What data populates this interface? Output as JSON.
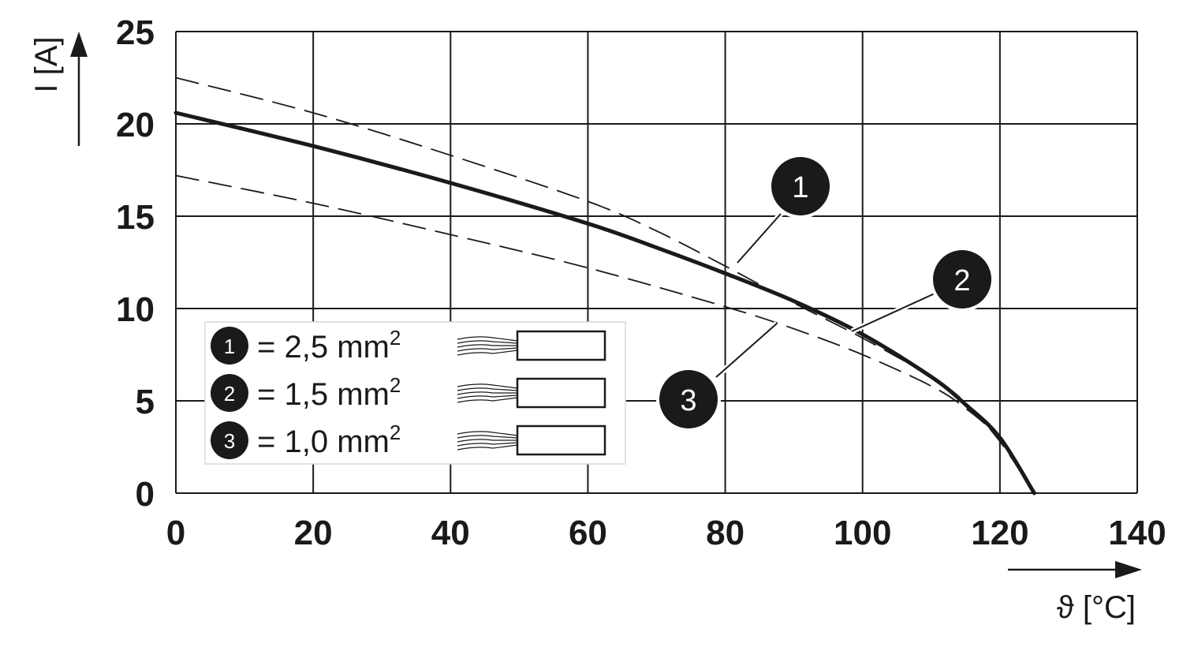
{
  "chart_data": {
    "type": "line",
    "xlabel": "ϑ [°C]",
    "ylabel": "I [A]",
    "xlim": [
      0,
      140
    ],
    "ylim": [
      0,
      25
    ],
    "xticks": [
      "0",
      "20",
      "40",
      "60",
      "80",
      "100",
      "120",
      "140"
    ],
    "yticks": [
      "0",
      "5",
      "10",
      "15",
      "20",
      "25"
    ],
    "grid": true,
    "legend_position": "bottom-left",
    "series": [
      {
        "name": "1",
        "style": "dashed",
        "x": [
          0,
          20,
          40,
          60,
          70,
          80,
          90,
          100,
          110,
          115,
          120,
          125
        ],
        "y": [
          22.5,
          20.6,
          18.3,
          15.8,
          14.2,
          12.3,
          10.3,
          8.4,
          6.3,
          4.9,
          2.8,
          0
        ]
      },
      {
        "name": "2",
        "style": "solid",
        "x": [
          0,
          20,
          40,
          60,
          70,
          80,
          90,
          100,
          110,
          115,
          120,
          125
        ],
        "y": [
          20.6,
          18.8,
          16.8,
          14.6,
          13.3,
          11.9,
          10.4,
          8.6,
          6.3,
          4.8,
          3.0,
          0
        ]
      },
      {
        "name": "3",
        "style": "dashed",
        "x": [
          0,
          20,
          40,
          60,
          80,
          90,
          100,
          110,
          115,
          120,
          125
        ],
        "y": [
          17.2,
          15.7,
          14.0,
          12.2,
          10.1,
          8.9,
          7.5,
          5.8,
          4.6,
          2.9,
          0
        ]
      }
    ],
    "legend": [
      {
        "marker": "1",
        "label": "= 2,5 mm",
        "superscript": "2"
      },
      {
        "marker": "2",
        "label": "= 1,5 mm",
        "superscript": "2"
      },
      {
        "marker": "3",
        "label": "= 1,0 mm",
        "superscript": "2"
      }
    ],
    "callouts": [
      {
        "marker": "1"
      },
      {
        "marker": "2"
      },
      {
        "marker": "3"
      }
    ]
  }
}
